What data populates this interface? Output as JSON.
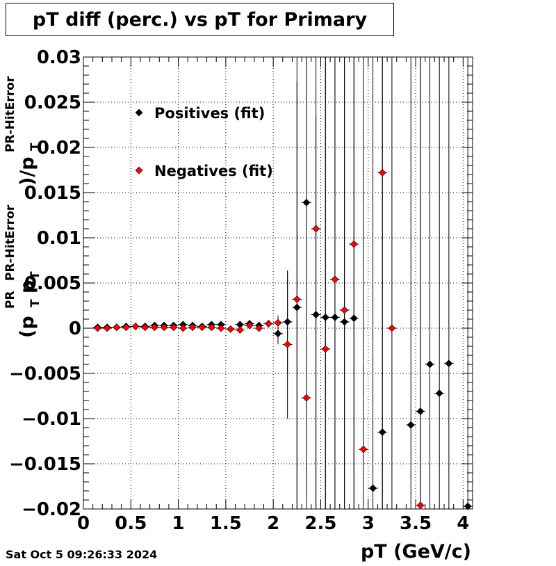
{
  "title": "pT diff (perc.) vs pT for Primary",
  "timestamp": "Sat Oct  5 09:26:33 2024",
  "chart_data": {
    "type": "scatter",
    "title": "pT diff (perc.) vs pT for Primary",
    "xlabel": "pT (GeV/c)",
    "ylabel_parts": {
      "open": "(p",
      "sub_t": "T",
      "sup_pr": "PR",
      "mid": "p",
      "sup_hit": "PR-HitError",
      "close": ")/p",
      "sub_t2": "T",
      "sup_hit2": "PR-HitError"
    },
    "xlim": [
      0,
      4.1
    ],
    "ylim": [
      -0.02,
      0.03
    ],
    "grid": true,
    "legend_position": "top-left",
    "x_ticks": [
      0,
      0.5,
      1,
      1.5,
      2,
      2.5,
      3,
      3.5,
      4
    ],
    "x_tick_labels": [
      "0",
      "0.5",
      "1",
      "1.5",
      "2",
      "2.5",
      "3",
      "3.5",
      "4"
    ],
    "y_ticks": [
      -0.02,
      -0.015,
      -0.01,
      -0.005,
      0,
      0.005,
      0.01,
      0.015,
      0.02,
      0.025,
      0.03
    ],
    "y_tick_labels": [
      "−0.02",
      "−0.015",
      "−0.01",
      "−0.005",
      "0",
      "0.005",
      "0.01",
      "0.015",
      "0.02",
      "0.025",
      "0.03"
    ],
    "series": [
      {
        "name": "Positives (fit)",
        "color": "#000000",
        "points": [
          {
            "x": 0.15,
            "y": 0.0001,
            "err": 0.0001
          },
          {
            "x": 0.25,
            "y": 0.0001,
            "err": 0.0001
          },
          {
            "x": 0.35,
            "y": 0.0001,
            "err": 0.0001
          },
          {
            "x": 0.45,
            "y": 0.0002,
            "err": 0.0001
          },
          {
            "x": 0.55,
            "y": 0.0002,
            "err": 0.0001
          },
          {
            "x": 0.65,
            "y": 0.0002,
            "err": 0.0001
          },
          {
            "x": 0.75,
            "y": 0.0003,
            "err": 0.0001
          },
          {
            "x": 0.85,
            "y": 0.0003,
            "err": 0.0001
          },
          {
            "x": 0.95,
            "y": 0.0003,
            "err": 0.0001
          },
          {
            "x": 1.05,
            "y": 0.0004,
            "err": 0.0001
          },
          {
            "x": 1.15,
            "y": 0.0003,
            "err": 0.0001
          },
          {
            "x": 1.25,
            "y": 0.0002,
            "err": 0.0001
          },
          {
            "x": 1.35,
            "y": 0.0004,
            "err": 0.0001
          },
          {
            "x": 1.45,
            "y": 0.0004,
            "err": 0.0002
          },
          {
            "x": 1.65,
            "y": 0.0004,
            "err": 0.0002
          },
          {
            "x": 1.75,
            "y": 0.0005,
            "err": 0.0003
          },
          {
            "x": 1.85,
            "y": 0.0003,
            "err": 0.0003
          },
          {
            "x": 1.95,
            "y": 0.0005,
            "err": 0.0004
          },
          {
            "x": 2.05,
            "y": -0.0006,
            "err": 0.0012
          },
          {
            "x": 2.15,
            "y": 0.0007,
            "err": 0.0056
          },
          {
            "x": 2.25,
            "y": 0.0023,
            "err": 0.025
          },
          {
            "x": 2.35,
            "y": 0.0139,
            "err": 0.0325
          },
          {
            "x": 2.45,
            "y": 0.0015,
            "err": 0.022
          },
          {
            "x": 2.55,
            "y": 0.0012,
            "err": 0.04
          },
          {
            "x": 2.65,
            "y": 0.0012,
            "err": 0.04
          },
          {
            "x": 2.75,
            "y": 0.0007,
            "err": 0.04
          },
          {
            "x": 2.85,
            "y": 0.0011,
            "err": 0.04
          },
          {
            "x": 3.05,
            "y": -0.0177,
            "err": 0.05
          },
          {
            "x": 3.15,
            "y": -0.0115,
            "err": 0.05
          },
          {
            "x": 3.45,
            "y": -0.0107,
            "err": 0.05
          },
          {
            "x": 3.55,
            "y": -0.0092,
            "err": 0.05
          },
          {
            "x": 3.65,
            "y": -0.004,
            "err": 0.05
          },
          {
            "x": 3.75,
            "y": -0.0072,
            "err": 0.05
          },
          {
            "x": 3.85,
            "y": -0.0039,
            "err": 0.05
          },
          {
            "x": 4.05,
            "y": -0.0197,
            "err": 0.05
          }
        ]
      },
      {
        "name": "Negatives (fit)",
        "color": "#ff0000",
        "points": [
          {
            "x": 0.15,
            "y": 0.0,
            "err": 0.0001
          },
          {
            "x": 0.25,
            "y": 0.0,
            "err": 0.0001
          },
          {
            "x": 0.35,
            "y": 0.0001,
            "err": 0.0001
          },
          {
            "x": 0.45,
            "y": 0.0001,
            "err": 0.0001
          },
          {
            "x": 0.55,
            "y": 0.0002,
            "err": 0.0001
          },
          {
            "x": 0.65,
            "y": 0.0001,
            "err": 0.0001
          },
          {
            "x": 0.75,
            "y": 0.0001,
            "err": 0.0001
          },
          {
            "x": 0.85,
            "y": 0.0001,
            "err": 0.0001
          },
          {
            "x": 0.95,
            "y": 0.0001,
            "err": 0.0001
          },
          {
            "x": 1.05,
            "y": 0.0,
            "err": 0.0001
          },
          {
            "x": 1.15,
            "y": 0.0001,
            "err": 0.0001
          },
          {
            "x": 1.25,
            "y": 0.0001,
            "err": 0.0001
          },
          {
            "x": 1.35,
            "y": 0.0001,
            "err": 0.0001
          },
          {
            "x": 1.45,
            "y": 0.0,
            "err": 0.0002
          },
          {
            "x": 1.55,
            "y": -0.0001,
            "err": 0.0002
          },
          {
            "x": 1.65,
            "y": -0.0002,
            "err": 0.0002
          },
          {
            "x": 1.75,
            "y": 0.0003,
            "err": 0.0003
          },
          {
            "x": 1.85,
            "y": 0.0,
            "err": 0.0003
          },
          {
            "x": 1.95,
            "y": 0.0005,
            "err": 0.0004
          },
          {
            "x": 2.05,
            "y": 0.0006,
            "err": 0.0008
          },
          {
            "x": 2.15,
            "y": -0.0018,
            "err": 0.0082
          },
          {
            "x": 2.25,
            "y": 0.0032,
            "err": 0.05
          },
          {
            "x": 2.35,
            "y": -0.0077,
            "err": 0.05
          },
          {
            "x": 2.45,
            "y": 0.011,
            "err": 0.05
          },
          {
            "x": 2.55,
            "y": -0.0023,
            "err": 0.05
          },
          {
            "x": 2.65,
            "y": 0.0054,
            "err": 0.05
          },
          {
            "x": 2.75,
            "y": 0.002,
            "err": 0.05
          },
          {
            "x": 2.85,
            "y": 0.0093,
            "err": 0.05
          },
          {
            "x": 2.95,
            "y": -0.0134,
            "err": 0.05
          },
          {
            "x": 3.15,
            "y": 0.0172,
            "err": 0.05
          },
          {
            "x": 3.25,
            "y": 0.0,
            "err": 0.05
          },
          {
            "x": 3.55,
            "y": -0.0196,
            "err": 0.05
          }
        ]
      }
    ]
  }
}
